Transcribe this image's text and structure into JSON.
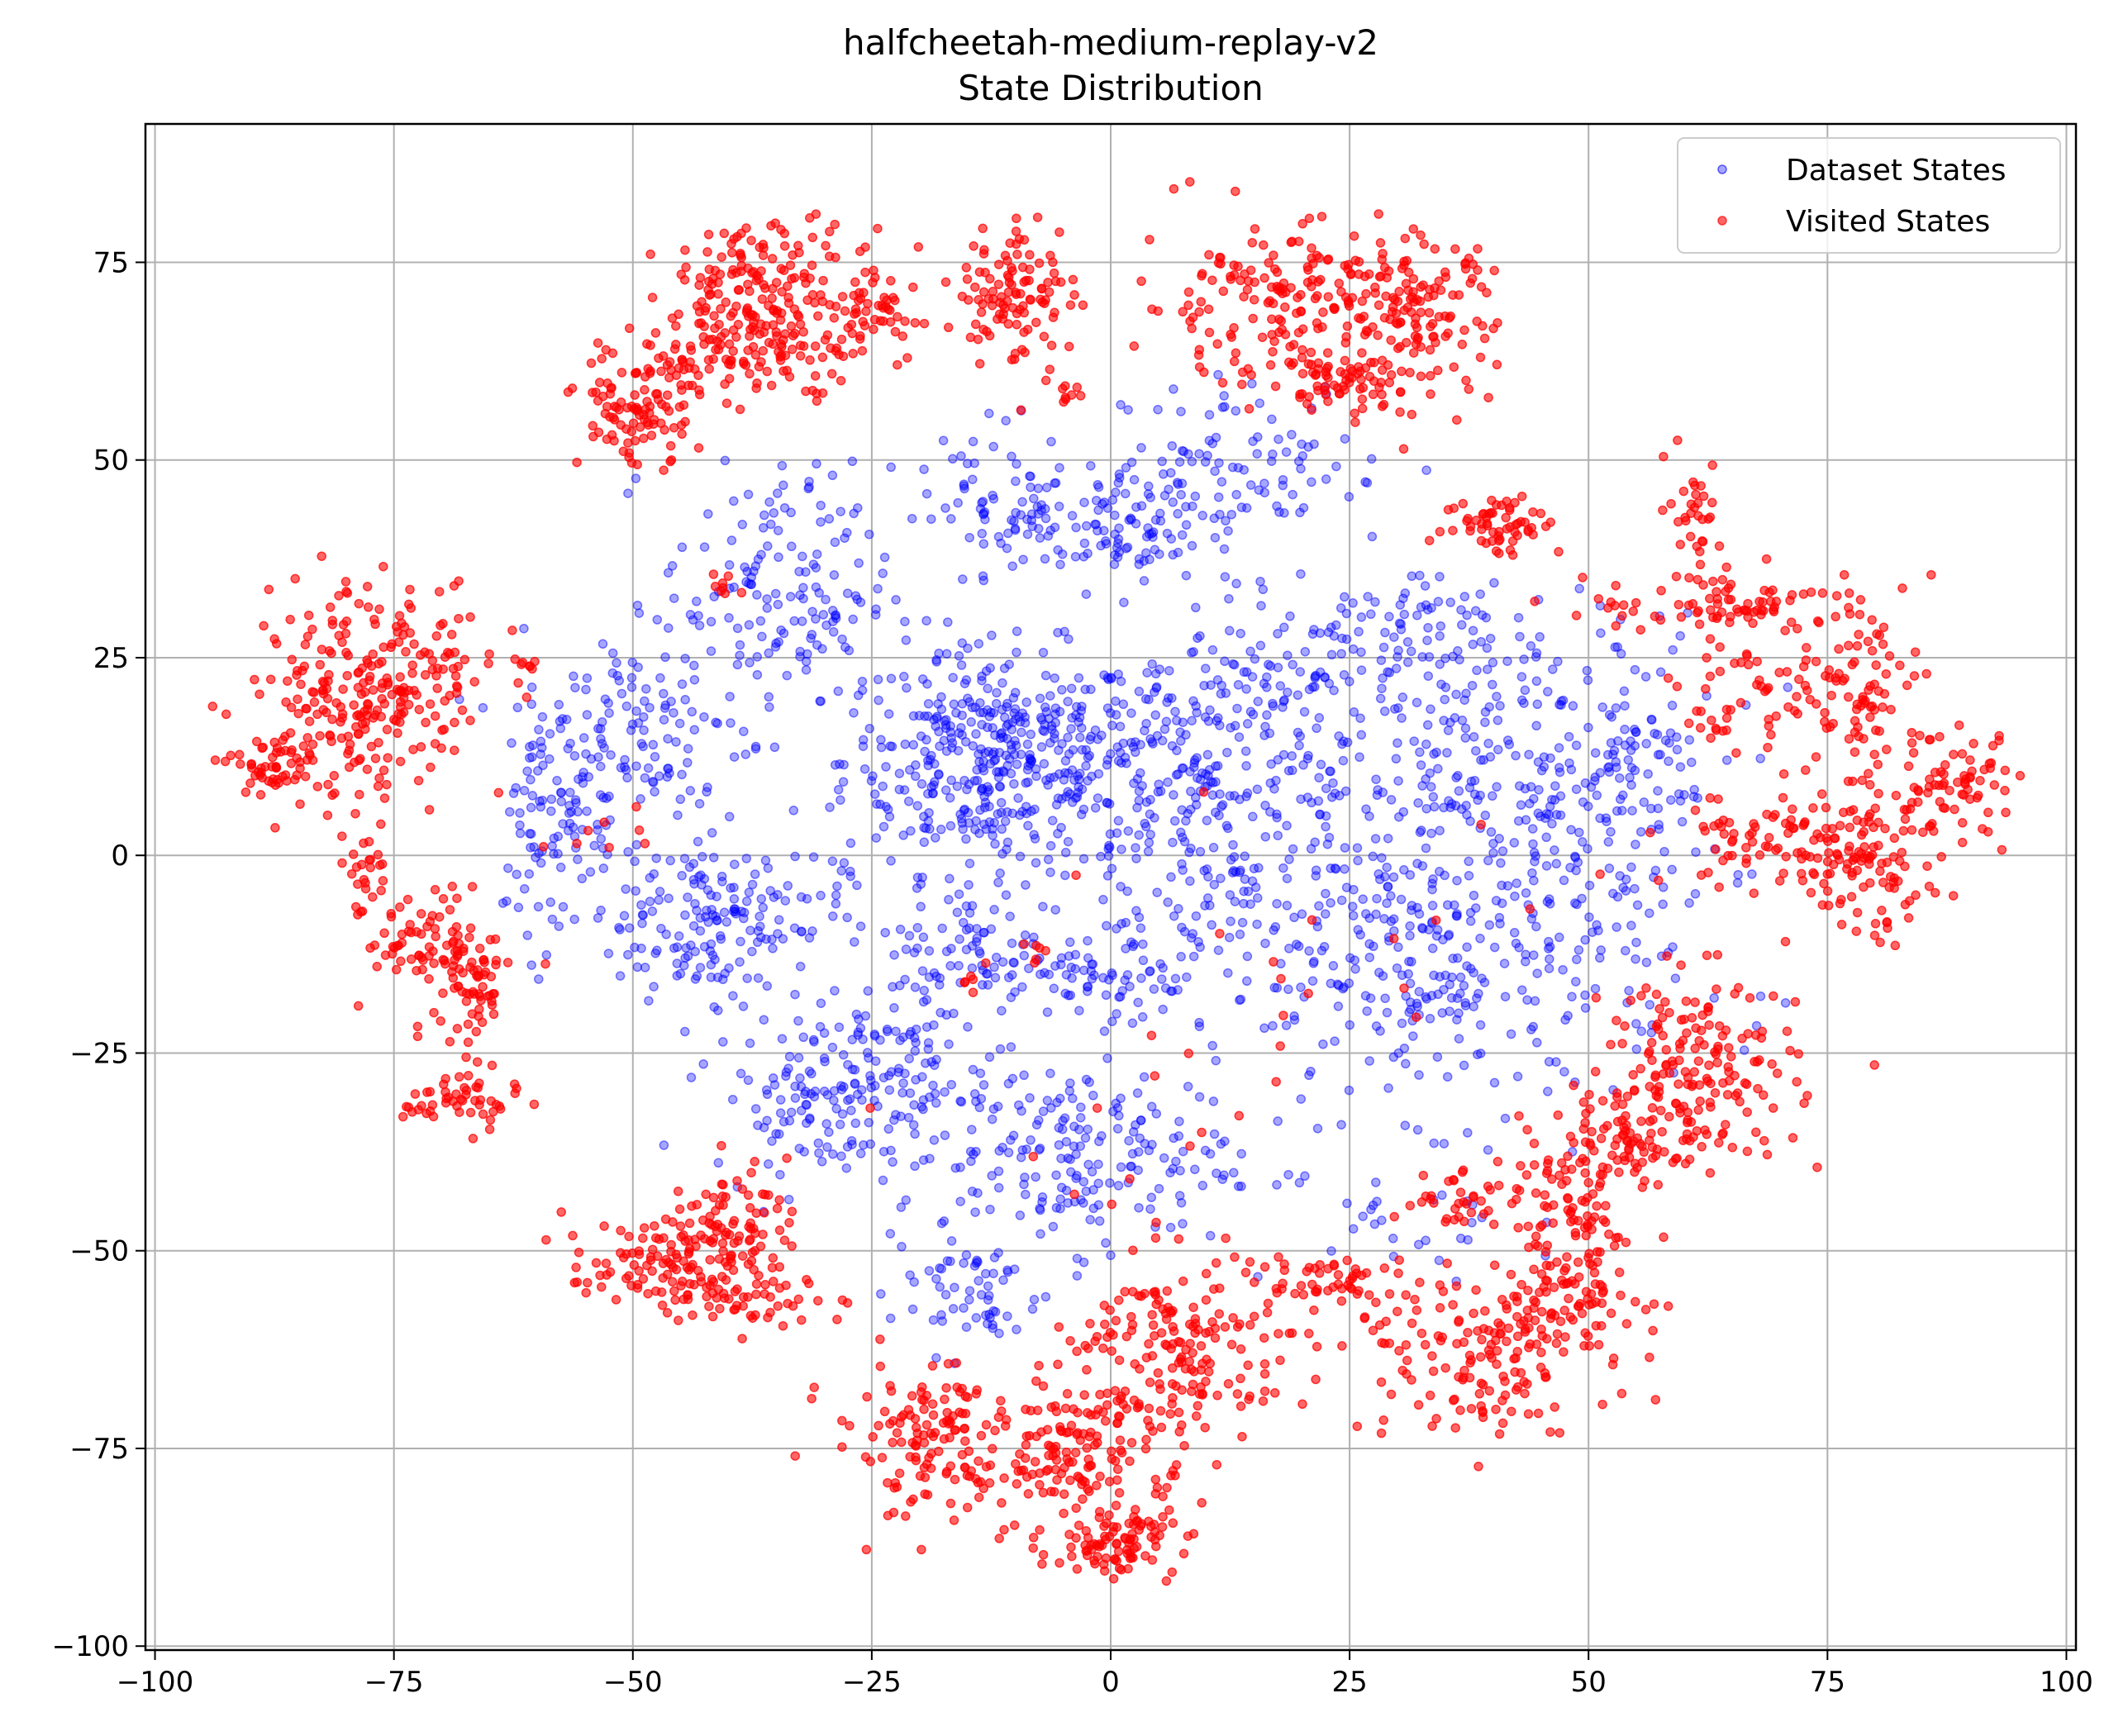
{
  "chart_data": {
    "type": "scatter",
    "title": "halfcheetah-medium-replay-v2",
    "subtitle": "State Distribution",
    "xlabel": "",
    "ylabel": "",
    "xlim": [
      -101,
      101
    ],
    "ylim": [
      -100.5,
      92.5
    ],
    "xticks": [
      -100,
      -75,
      -50,
      -25,
      0,
      25,
      50,
      75,
      100
    ],
    "yticks": [
      -100,
      -75,
      -50,
      -25,
      0,
      25,
      50,
      75
    ],
    "xtick_labels": [
      "−100",
      "−75",
      "−50",
      "−25",
      "0",
      "25",
      "50",
      "75",
      "100"
    ],
    "ytick_labels": [
      "−100",
      "−75",
      "−50",
      "−25",
      "0",
      "25",
      "50",
      "75"
    ],
    "grid": true,
    "legend_position": "top-right",
    "series": [
      {
        "name": "Dataset States",
        "color": "#0000ff",
        "alpha": 0.35,
        "clusters": [
          {
            "cx": -12,
            "cy": 12,
            "sx": 8,
            "sy": 7,
            "n": 420
          },
          {
            "cx": 10,
            "cy": 5,
            "sx": 10,
            "sy": 12,
            "n": 330
          },
          {
            "cx": 42,
            "cy": 8,
            "sx": 11,
            "sy": 11,
            "n": 300
          },
          {
            "cx": 35,
            "cy": -15,
            "sx": 12,
            "sy": 9,
            "n": 280
          },
          {
            "cx": -42,
            "cy": -8,
            "sx": 7,
            "sy": 5,
            "n": 180
          },
          {
            "cx": -35,
            "cy": 33,
            "sx": 6,
            "sy": 8,
            "n": 160
          },
          {
            "cx": -50,
            "cy": 15,
            "sx": 6,
            "sy": 7,
            "n": 120
          },
          {
            "cx": -58,
            "cy": 5,
            "sx": 3,
            "sy": 7,
            "n": 80
          },
          {
            "cx": -30,
            "cy": -30,
            "sx": 6,
            "sy": 5,
            "n": 140
          },
          {
            "cx": -5,
            "cy": -38,
            "sx": 9,
            "sy": 6,
            "n": 200
          },
          {
            "cx": -15,
            "cy": -55,
            "sx": 4,
            "sy": 4,
            "n": 60
          },
          {
            "cx": 0,
            "cy": 42,
            "sx": 5,
            "sy": 4,
            "n": 110
          },
          {
            "cx": -12,
            "cy": 45,
            "sx": 4,
            "sy": 5,
            "n": 60
          },
          {
            "cx": 15,
            "cy": 50,
            "sx": 7,
            "sy": 5,
            "n": 90
          },
          {
            "cx": 30,
            "cy": 28,
            "sx": 6,
            "sy": 5,
            "n": 90
          },
          {
            "cx": -14,
            "cy": -12,
            "sx": 4,
            "sy": 4,
            "n": 70
          },
          {
            "cx": 0,
            "cy": -17,
            "sx": 4,
            "sy": 3,
            "n": 50
          },
          {
            "cx": 15,
            "cy": 22,
            "sx": 6,
            "sy": 5,
            "n": 60
          },
          {
            "cx": -20,
            "cy": -25,
            "sx": 4,
            "sy": 5,
            "n": 50
          },
          {
            "cx": 55,
            "cy": 10,
            "sx": 4,
            "sy": 6,
            "n": 50
          },
          {
            "cx": 32,
            "cy": -48,
            "sx": 6,
            "sy": 4,
            "n": 25
          }
        ]
      },
      {
        "name": "Visited States",
        "color": "#ff0000",
        "alpha": 0.6,
        "clusters": [
          {
            "cx": -80,
            "cy": 20,
            "sx": 5,
            "sy": 7,
            "n": 200
          },
          {
            "cx": -72,
            "cy": 23,
            "sx": 4,
            "sy": 4,
            "n": 70
          },
          {
            "cx": -88,
            "cy": 11,
            "sx": 2,
            "sy": 2,
            "n": 40
          },
          {
            "cx": -78,
            "cy": -2,
            "sx": 1.5,
            "sy": 3,
            "n": 25
          },
          {
            "cx": -72,
            "cy": -11,
            "sx": 3,
            "sy": 3,
            "n": 60
          },
          {
            "cx": -67,
            "cy": -17,
            "sx": 2,
            "sy": 5,
            "n": 70
          },
          {
            "cx": -68,
            "cy": -31,
            "sx": 3,
            "sy": 2,
            "n": 50
          },
          {
            "cx": -50,
            "cy": 55,
            "sx": 3,
            "sy": 3,
            "n": 80
          },
          {
            "cx": -43,
            "cy": 62,
            "sx": 5,
            "sy": 2,
            "n": 70
          },
          {
            "cx": -35,
            "cy": 70,
            "sx": 6,
            "sy": 5,
            "n": 230
          },
          {
            "cx": -24,
            "cy": 69,
            "sx": 2,
            "sy": 2,
            "n": 30
          },
          {
            "cx": -10,
            "cy": 71,
            "sx": 3,
            "sy": 5,
            "n": 110
          },
          {
            "cx": -4,
            "cy": 58,
            "sx": 1,
            "sy": 1,
            "n": 8
          },
          {
            "cx": 17,
            "cy": 70,
            "sx": 7,
            "sy": 5,
            "n": 170
          },
          {
            "cx": 32,
            "cy": 68,
            "sx": 4,
            "sy": 5,
            "n": 130
          },
          {
            "cx": 24,
            "cy": 60,
            "sx": 4,
            "sy": 2,
            "n": 60
          },
          {
            "cx": 41,
            "cy": 42,
            "sx": 3,
            "sy": 2,
            "n": 60
          },
          {
            "cx": 61,
            "cy": 44,
            "sx": 1.5,
            "sy": 3,
            "n": 30
          },
          {
            "cx": 66,
            "cy": 32,
            "sx": 8,
            "sy": 2,
            "n": 90
          },
          {
            "cx": 78,
            "cy": 20,
            "sx": 4,
            "sy": 5,
            "n": 90
          },
          {
            "cx": 65,
            "cy": 20,
            "sx": 3,
            "sy": 4,
            "n": 40
          },
          {
            "cx": 89,
            "cy": 9,
            "sx": 3,
            "sy": 3,
            "n": 60
          },
          {
            "cx": 79,
            "cy": -1,
            "sx": 4,
            "sy": 5,
            "n": 130
          },
          {
            "cx": 68,
            "cy": 2,
            "sx": 5,
            "sy": 3,
            "n": 60
          },
          {
            "cx": 62,
            "cy": -27,
            "sx": 5,
            "sy": 6,
            "n": 150
          },
          {
            "cx": 55,
            "cy": -34,
            "sx": 4,
            "sy": 4,
            "n": 90
          },
          {
            "cx": 48,
            "cy": -47,
            "sx": 4,
            "sy": 5,
            "n": 110
          },
          {
            "cx": 48,
            "cy": -57,
            "sx": 5,
            "sy": 2,
            "n": 60
          },
          {
            "cx": 38,
            "cy": -63,
            "sx": 7,
            "sy": 5,
            "n": 150
          },
          {
            "cx": 35,
            "cy": -43,
            "sx": 3,
            "sy": 2,
            "n": 30
          },
          {
            "cx": 22,
            "cy": -54,
            "sx": 4,
            "sy": 2,
            "n": 50
          },
          {
            "cx": 8,
            "cy": -62,
            "sx": 5,
            "sy": 6,
            "n": 150
          },
          {
            "cx": -3,
            "cy": -75,
            "sx": 6,
            "sy": 6,
            "n": 180
          },
          {
            "cx": 1,
            "cy": -87,
            "sx": 3,
            "sy": 2,
            "n": 80
          },
          {
            "cx": -19,
            "cy": -74,
            "sx": 5,
            "sy": 5,
            "n": 130
          },
          {
            "cx": -47,
            "cy": -52,
            "sx": 5,
            "sy": 3,
            "n": 110
          },
          {
            "cx": -40,
            "cy": -47,
            "sx": 3,
            "sy": 4,
            "n": 80
          },
          {
            "cx": -35,
            "cy": -56,
            "sx": 4,
            "sy": 2,
            "n": 40
          },
          {
            "cx": -8,
            "cy": -12,
            "sx": 1,
            "sy": 1,
            "n": 6
          },
          {
            "cx": -15,
            "cy": -16,
            "sx": 1,
            "sy": 1,
            "n": 6
          },
          {
            "cx": -40,
            "cy": 34,
            "sx": 1,
            "sy": 1,
            "n": 8
          },
          {
            "cx": -62,
            "cy": 24,
            "sx": 1,
            "sy": 1,
            "n": 8
          },
          {
            "cx": -53,
            "cy": 5,
            "sx": 3,
            "sy": 3,
            "n": 8
          },
          {
            "cx": 10,
            "cy": -25,
            "sx": 15,
            "sy": 10,
            "n": 15
          },
          {
            "cx": 30,
            "cy": -10,
            "sx": 15,
            "sy": 12,
            "n": 12
          }
        ]
      }
    ]
  }
}
